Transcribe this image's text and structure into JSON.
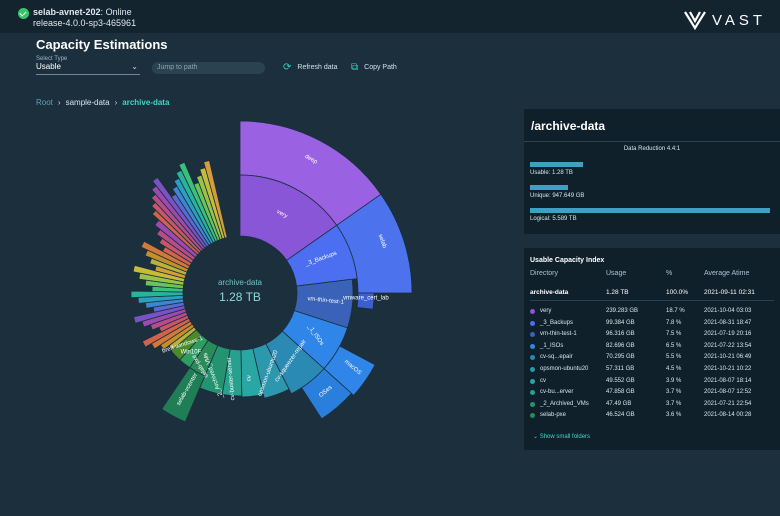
{
  "header": {
    "cluster": "selab-avnet-202",
    "cluster_status": "Online",
    "release": "release-4.0.0-sp3-465961",
    "logo_text": "VAST"
  },
  "page": {
    "title": "Capacity Estimations",
    "select_type_label": "Select Type",
    "select_type_value": "Usable",
    "jump_placeholder": "Jump to path",
    "refresh_label": "Refresh data",
    "copy_label": "Copy Path"
  },
  "breadcrumb": [
    "Root",
    "sample-data",
    "archive-data"
  ],
  "sunburst": {
    "center_label": "archive-data",
    "center_value": "1.28 TB",
    "segments": [
      "deep",
      "very",
      "_3_Backups",
      "selab",
      "vmware_cert_lab",
      "vm-thin-test-1",
      "_1_ISOs",
      "macOS",
      "OSes",
      "cv-squeezer-repair",
      "opsmon-ubuntu20",
      "cv",
      "cv-buster-server",
      "_2_Archived_VMs",
      "selab-pxe",
      "Win10F",
      "brett-windows-1",
      "selab-vcenter"
    ]
  },
  "summary": {
    "path": "/archive-data",
    "data_reduction": "Data Reduction 4.4:1",
    "usable": "Usable: 1.28 TB",
    "unique": "Unique: 947.649 GB",
    "logical": "Logical: 5.589 TB",
    "bars": {
      "usable": 0.22,
      "unique": 0.16,
      "logical": 1.0
    }
  },
  "capacity_index": {
    "title": "Usable Capacity Index",
    "columns": [
      "Directory",
      "Usage",
      "%",
      "Average Atime"
    ],
    "root": {
      "dir": "archive-data",
      "usage": "1.28 TB",
      "pct": "100.0%",
      "atime": "2021-09-11 02:31"
    },
    "rows": [
      {
        "dir": "very",
        "usage": "239.283 GB",
        "pct": "18.7 %",
        "atime": "2021-10-04 03:03",
        "color": "#8a56d8"
      },
      {
        "dir": "_3_Backups",
        "usage": "99.384 GB",
        "pct": "7.8 %",
        "atime": "2021-08-31 18:47",
        "color": "#4b6ff0"
      },
      {
        "dir": "vm-thin-test-1",
        "usage": "96.316 GB",
        "pct": "7.5 %",
        "atime": "2021-07-19 20:16",
        "color": "#3a62b8"
      },
      {
        "dir": "_1_ISOs",
        "usage": "82.696 GB",
        "pct": "6.5 %",
        "atime": "2021-07-22 13:54",
        "color": "#2f86e8"
      },
      {
        "dir": "cv-sq...epair",
        "usage": "70.295 GB",
        "pct": "5.5 %",
        "atime": "2021-10-21 06:49",
        "color": "#2a8ab4"
      },
      {
        "dir": "opsmon-ubuntu20",
        "usage": "57.311 GB",
        "pct": "4.5 %",
        "atime": "2021-10-21 10:22",
        "color": "#2d97ae"
      },
      {
        "dir": "cv",
        "usage": "49.552 GB",
        "pct": "3.9 %",
        "atime": "2021-08-07 18:14",
        "color": "#2aa6a5"
      },
      {
        "dir": "cv-bu...erver",
        "usage": "47.858 GB",
        "pct": "3.7 %",
        "atime": "2021-08-07 12:52",
        "color": "#27a08e"
      },
      {
        "dir": "_2_Archived_VMs",
        "usage": "47.49 GB",
        "pct": "3.7 %",
        "atime": "2021-07-21 22:54",
        "color": "#23946f"
      },
      {
        "dir": "selab-pxe",
        "usage": "46.524 GB",
        "pct": "3.6 %",
        "atime": "2021-08-14 00:28",
        "color": "#2a8a5a"
      }
    ],
    "show_small": "Show small folders"
  }
}
